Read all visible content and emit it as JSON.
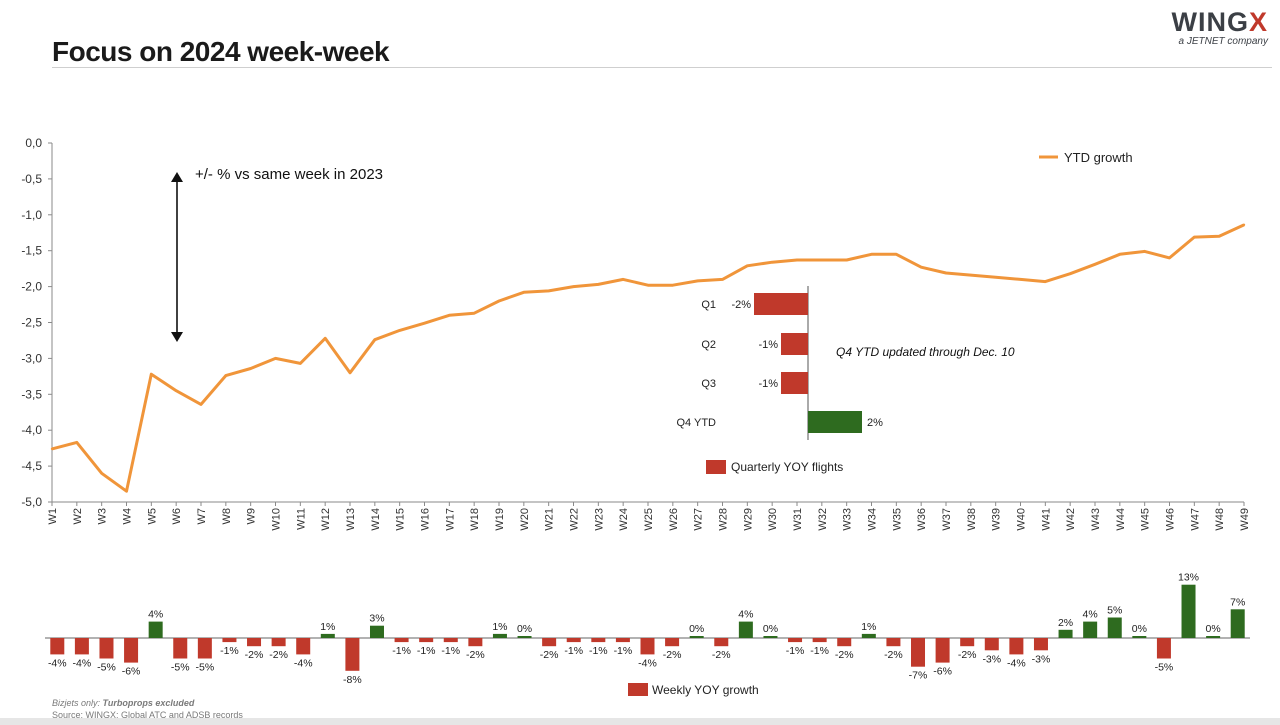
{
  "page": {
    "title": "Focus on 2024 week-week",
    "logo": {
      "word": "WING",
      "word_accent": "X",
      "tagline": "a JETNET company"
    },
    "footnote_prefix": "Bizjets only:",
    "footnote_emphasis": "Turboprops excluded",
    "source": "Source: WINGX; Global ATC and ADSB records"
  },
  "chart_data": [
    {
      "type": "line",
      "x": [
        "W1",
        "W2",
        "W3",
        "W4",
        "W5",
        "W6",
        "W7",
        "W8",
        "W9",
        "W10",
        "W11",
        "W12",
        "W13",
        "W14",
        "W15",
        "W16",
        "W17",
        "W18",
        "W19",
        "W20",
        "W21",
        "W22",
        "W23",
        "W24",
        "W25",
        "W26",
        "W27",
        "W28",
        "W29",
        "W30",
        "W31",
        "W32",
        "W33",
        "W34",
        "W35",
        "W36",
        "W37",
        "W38",
        "W39",
        "W40",
        "W41",
        "W42",
        "W43",
        "W44",
        "W45",
        "W46",
        "W47",
        "W48",
        "W49"
      ],
      "series": [
        {
          "name": "YTD growth",
          "color": "#f0953a",
          "values": [
            -4.26,
            -4.17,
            -4.6,
            -4.85,
            -3.22,
            -3.45,
            -3.64,
            -3.24,
            -3.14,
            -3.0,
            -3.07,
            -2.72,
            -3.2,
            -2.74,
            -2.61,
            -2.51,
            -2.4,
            -2.37,
            -2.2,
            -2.08,
            -2.06,
            -2.0,
            -1.97,
            -1.9,
            -1.98,
            -1.98,
            -1.92,
            -1.9,
            -1.71,
            -1.66,
            -1.63,
            -1.63,
            -1.63,
            -1.55,
            -1.55,
            -1.73,
            -1.81,
            -1.84,
            -1.87,
            -1.9,
            -1.93,
            -1.82,
            -1.69,
            -1.55,
            -1.51,
            -1.6,
            -1.31,
            -1.3,
            -1.14
          ]
        }
      ],
      "y_ticks": [
        "0,0",
        "-0,5",
        "-1,0",
        "-1,5",
        "-2,0",
        "-2,5",
        "-3,0",
        "-3,5",
        "-4,0",
        "-4,5",
        "-5,0"
      ],
      "ylim": [
        -5.0,
        0.0
      ],
      "legend": "top-right",
      "annotation": "+/- %  vs same week in 2023"
    },
    {
      "type": "bar",
      "orientation": "horizontal",
      "categories": [
        "Q1",
        "Q2",
        "Q3",
        "Q4 YTD"
      ],
      "values": [
        -2,
        -1,
        -1,
        2
      ],
      "labels": [
        "-2%",
        "-1%",
        "-1%",
        "2%"
      ],
      "legend_label": "Quarterly YOY flights",
      "annotation": "Q4 YTD updated through Dec. 10",
      "colors": {
        "negative": "#c0392b",
        "positive": "#2e6b1f"
      }
    },
    {
      "type": "bar",
      "categories": [
        "W1",
        "W2",
        "W3",
        "W4",
        "W5",
        "W6",
        "W7",
        "W8",
        "W9",
        "W10",
        "W11",
        "W12",
        "W13",
        "W14",
        "W15",
        "W16",
        "W17",
        "W18",
        "W19",
        "W20",
        "W21",
        "W22",
        "W23",
        "W24",
        "W25",
        "W26",
        "W27",
        "W28",
        "W29",
        "W30",
        "W31",
        "W32",
        "W33",
        "W34",
        "W35",
        "W36",
        "W37",
        "W38",
        "W39",
        "W40",
        "W41",
        "W42",
        "W43",
        "W44",
        "W45",
        "W46",
        "W47",
        "W48",
        "W49"
      ],
      "values": [
        -4,
        -4,
        -5,
        -6,
        4,
        -5,
        -5,
        -1,
        -2,
        -2,
        -4,
        1,
        -8,
        3,
        -1,
        -1,
        -1,
        -2,
        1,
        0,
        -2,
        -1,
        -1,
        -1,
        -4,
        -2,
        0,
        -2,
        4,
        0,
        -1,
        -1,
        -2,
        1,
        -2,
        -7,
        -6,
        -2,
        -3,
        -4,
        -3,
        2,
        4,
        5,
        0,
        -5,
        13,
        0,
        7
      ],
      "labels": [
        "-4%",
        "-4%",
        "-5%",
        "-6%",
        "4%",
        "-5%",
        "-5%",
        "-1%",
        "-2%",
        "-2%",
        "-4%",
        "1%",
        "-8%",
        "3%",
        "-1%",
        "-1%",
        "-1%",
        "-2%",
        "1%",
        "0%",
        "-2%",
        "-1%",
        "-1%",
        "-1%",
        "-4%",
        "-2%",
        "0%",
        "-2%",
        "4%",
        "0%",
        "-1%",
        "-1%",
        "-2%",
        "1%",
        "-2%",
        "-7%",
        "-6%",
        "-2%",
        "-3%",
        "-4%",
        "-3%",
        "2%",
        "4%",
        "5%",
        "0%",
        "-5%",
        "13%",
        "0%",
        "7%"
      ],
      "legend_label": "Weekly YOY growth",
      "colors": {
        "negative": "#c0392b",
        "positive": "#2e6b1f"
      }
    }
  ]
}
